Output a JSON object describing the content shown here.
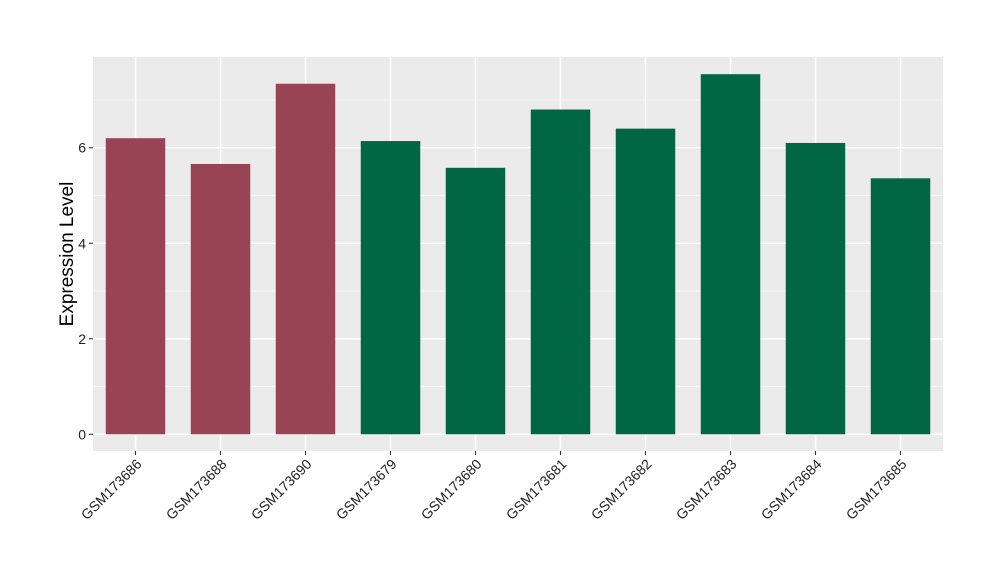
{
  "chart_data": {
    "type": "bar",
    "categories": [
      "GSM173686",
      "GSM173688",
      "GSM173690",
      "GSM173679",
      "GSM173680",
      "GSM173681",
      "GSM173682",
      "GSM173683",
      "GSM173684",
      "GSM173685"
    ],
    "values": [
      6.2,
      5.66,
      7.34,
      6.14,
      5.58,
      6.8,
      6.4,
      7.54,
      6.1,
      5.36
    ],
    "bar_colors": [
      "#994455",
      "#994455",
      "#994455",
      "#006644",
      "#006644",
      "#006644",
      "#006644",
      "#006644",
      "#006644",
      "#006644"
    ],
    "title": "",
    "xlabel": "",
    "ylabel": "Expression Level",
    "ylim": [
      -0.35,
      7.9
    ],
    "yticks": [
      0,
      2,
      4,
      6
    ],
    "grid": true,
    "legend": "none",
    "colors": {
      "panel_background": "#ebebeb",
      "grid_major": "#ffffff",
      "grid_minor": "#f5f5f5"
    }
  }
}
